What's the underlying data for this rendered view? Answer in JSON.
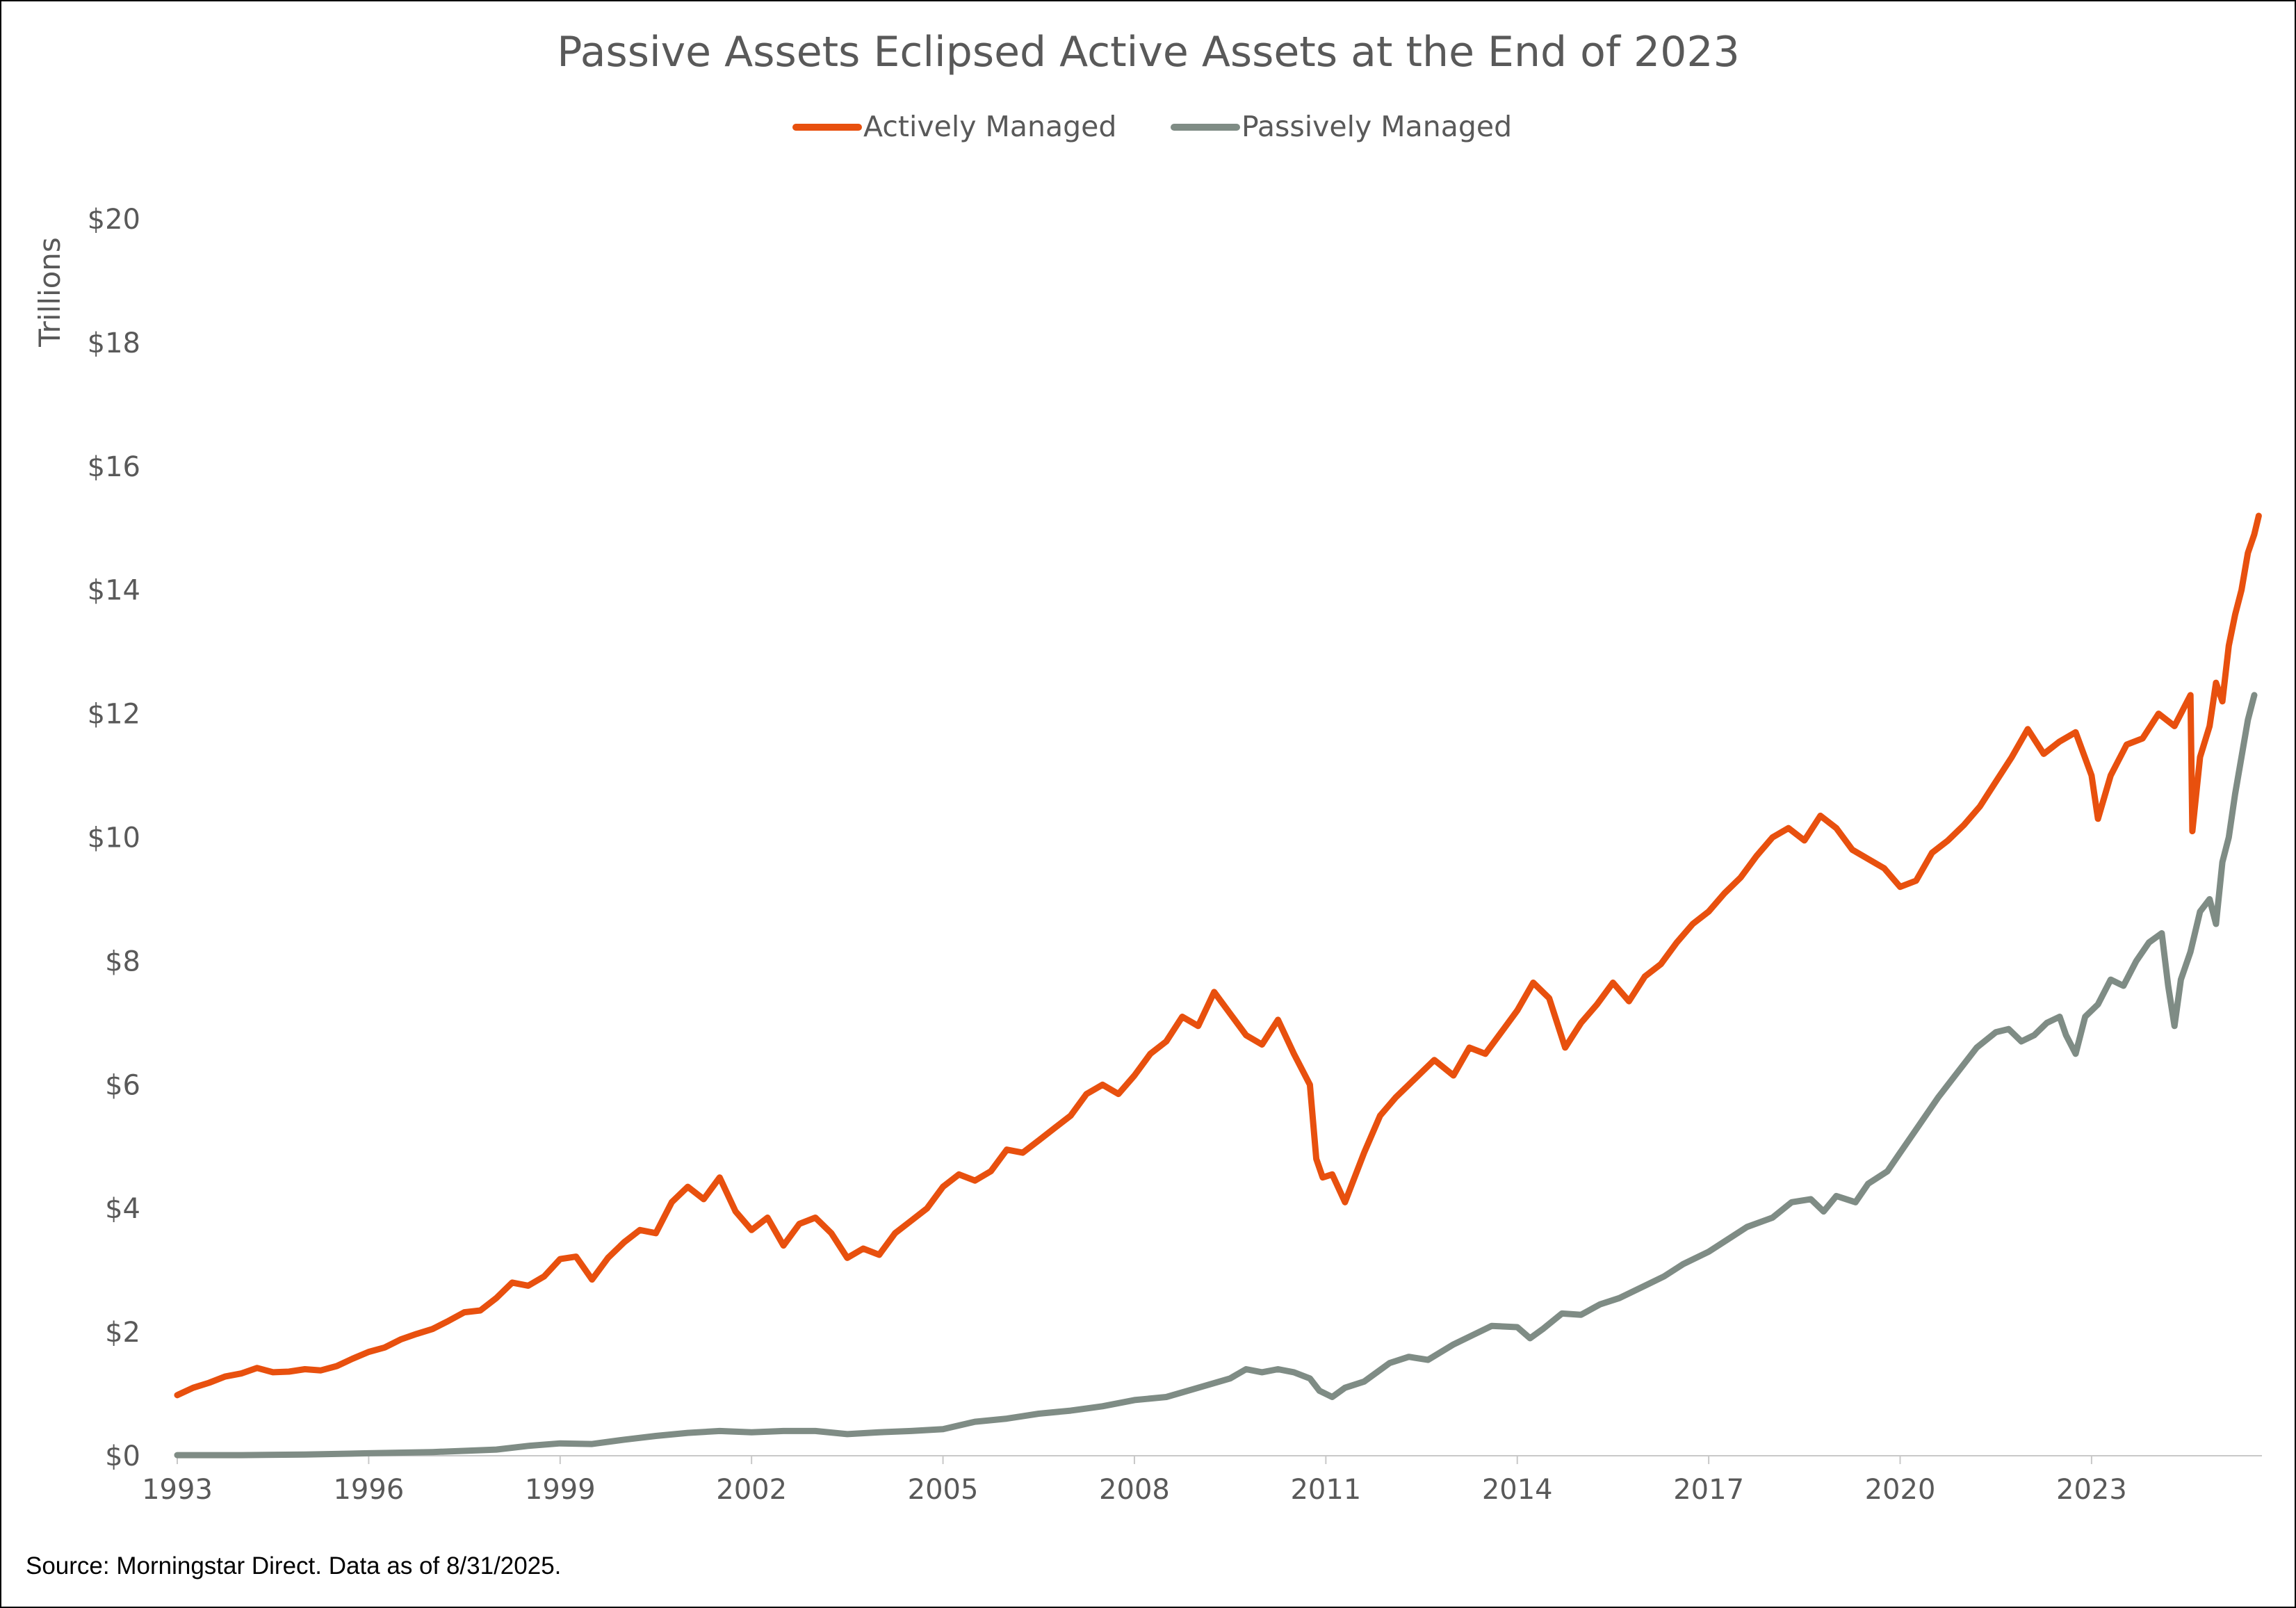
{
  "chart_data": {
    "type": "line",
    "title": "Passive Assets Eclipsed Active Assets at the End of 2023",
    "ylabel": "Trillions",
    "xlabel": "",
    "x_ticks": [
      "1993",
      "1996",
      "1999",
      "2002",
      "2005",
      "2008",
      "2011",
      "2014",
      "2017",
      "2020",
      "2023"
    ],
    "x_tick_values": [
      1993,
      1996,
      1999,
      2002,
      2005,
      2008,
      2011,
      2014,
      2017,
      2020,
      2023
    ],
    "y_ticks": [
      "$0",
      "$2",
      "$4",
      "$6",
      "$8",
      "$10",
      "$12",
      "$14",
      "$16",
      "$18",
      "$20"
    ],
    "y_tick_values": [
      0,
      2,
      4,
      6,
      8,
      10,
      12,
      14,
      16,
      18,
      20
    ],
    "xlim": [
      1993,
      2025.67
    ],
    "ylim": [
      0,
      20
    ],
    "grid": false,
    "legend_position": "top-center",
    "source": "Source: Morningstar Direct. Data as of 8/31/2025.",
    "series": [
      {
        "name": "Actively Managed",
        "color": "#E8500E",
        "points": [
          [
            1993.0,
            0.98
          ],
          [
            1993.25,
            1.1
          ],
          [
            1993.5,
            1.18
          ],
          [
            1993.75,
            1.28
          ],
          [
            1994.0,
            1.33
          ],
          [
            1994.25,
            1.42
          ],
          [
            1994.5,
            1.35
          ],
          [
            1994.75,
            1.36
          ],
          [
            1995.0,
            1.4
          ],
          [
            1995.25,
            1.38
          ],
          [
            1995.5,
            1.45
          ],
          [
            1995.75,
            1.57
          ],
          [
            1996.0,
            1.68
          ],
          [
            1996.25,
            1.75
          ],
          [
            1996.5,
            1.88
          ],
          [
            1996.75,
            1.97
          ],
          [
            1997.0,
            2.05
          ],
          [
            1997.25,
            2.18
          ],
          [
            1997.5,
            2.32
          ],
          [
            1997.75,
            2.35
          ],
          [
            1998.0,
            2.55
          ],
          [
            1998.25,
            2.8
          ],
          [
            1998.5,
            2.75
          ],
          [
            1998.75,
            2.9
          ],
          [
            1999.0,
            3.18
          ],
          [
            1999.25,
            3.22
          ],
          [
            1999.5,
            2.85
          ],
          [
            1999.75,
            3.2
          ],
          [
            2000.0,
            3.45
          ],
          [
            2000.25,
            3.65
          ],
          [
            2000.5,
            3.6
          ],
          [
            2000.75,
            4.1
          ],
          [
            2001.0,
            4.35
          ],
          [
            2001.25,
            4.15
          ],
          [
            2001.5,
            4.5
          ],
          [
            2001.75,
            3.95
          ],
          [
            2002.0,
            3.65
          ],
          [
            2002.25,
            3.85
          ],
          [
            2002.5,
            3.4
          ],
          [
            2002.75,
            3.75
          ],
          [
            2003.0,
            3.85
          ],
          [
            2003.25,
            3.6
          ],
          [
            2003.5,
            3.2
          ],
          [
            2003.75,
            3.35
          ],
          [
            2004.0,
            3.25
          ],
          [
            2004.25,
            3.6
          ],
          [
            2004.5,
            3.8
          ],
          [
            2004.75,
            4.0
          ],
          [
            2005.0,
            4.35
          ],
          [
            2005.25,
            4.55
          ],
          [
            2005.5,
            4.45
          ],
          [
            2005.75,
            4.6
          ],
          [
            2006.0,
            4.95
          ],
          [
            2006.25,
            4.9
          ],
          [
            2006.5,
            5.1
          ],
          [
            2006.75,
            5.3
          ],
          [
            2007.0,
            5.5
          ],
          [
            2007.25,
            5.85
          ],
          [
            2007.5,
            6.0
          ],
          [
            2007.75,
            5.85
          ],
          [
            2008.0,
            6.15
          ],
          [
            2008.25,
            6.5
          ],
          [
            2008.5,
            6.7
          ],
          [
            2008.75,
            7.1
          ],
          [
            2009.0,
            6.95
          ],
          [
            2009.25,
            7.5
          ],
          [
            2009.5,
            7.15
          ],
          [
            2009.75,
            6.8
          ],
          [
            2010.0,
            6.65
          ],
          [
            2010.25,
            7.05
          ],
          [
            2010.5,
            6.5
          ],
          [
            2010.75,
            6.0
          ],
          [
            2010.85,
            4.8
          ],
          [
            2010.95,
            4.5
          ],
          [
            2011.1,
            4.55
          ],
          [
            2011.3,
            4.1
          ],
          [
            2011.6,
            4.9
          ],
          [
            2011.85,
            5.5
          ],
          [
            2012.1,
            5.8
          ],
          [
            2012.4,
            6.1
          ],
          [
            2012.7,
            6.4
          ],
          [
            2013.0,
            6.15
          ],
          [
            2013.25,
            6.6
          ],
          [
            2013.5,
            6.5
          ],
          [
            2013.75,
            6.85
          ],
          [
            2014.0,
            7.2
          ],
          [
            2014.25,
            7.65
          ],
          [
            2014.5,
            7.4
          ],
          [
            2014.75,
            6.6
          ],
          [
            2015.0,
            7.0
          ],
          [
            2015.25,
            7.3
          ],
          [
            2015.5,
            7.65
          ],
          [
            2015.75,
            7.35
          ],
          [
            2016.0,
            7.75
          ],
          [
            2016.25,
            7.95
          ],
          [
            2016.5,
            8.3
          ],
          [
            2016.75,
            8.6
          ],
          [
            2017.0,
            8.8
          ],
          [
            2017.25,
            9.1
          ],
          [
            2017.5,
            9.35
          ],
          [
            2017.75,
            9.7
          ],
          [
            2018.0,
            10.0
          ],
          [
            2018.25,
            10.15
          ],
          [
            2018.5,
            9.95
          ],
          [
            2018.75,
            10.35
          ],
          [
            2019.0,
            10.15
          ],
          [
            2019.25,
            9.8
          ],
          [
            2019.5,
            9.65
          ],
          [
            2019.75,
            9.5
          ],
          [
            2020.0,
            9.2
          ],
          [
            2020.25,
            9.3
          ],
          [
            2020.5,
            9.75
          ],
          [
            2020.75,
            9.95
          ],
          [
            2021.0,
            10.2
          ],
          [
            2021.25,
            10.5
          ],
          [
            2021.5,
            10.9
          ],
          [
            2021.75,
            11.3
          ],
          [
            2022.0,
            11.75
          ],
          [
            2022.25,
            11.35
          ],
          [
            2022.5,
            11.55
          ],
          [
            2022.75,
            11.7
          ],
          [
            2023.0,
            11.0
          ],
          [
            2023.1,
            10.3
          ],
          [
            2023.3,
            11.0
          ],
          [
            2023.55,
            11.5
          ],
          [
            2023.8,
            11.6
          ],
          [
            2024.05,
            12.0
          ],
          [
            2024.3,
            11.8
          ],
          [
            2024.5,
            12.2
          ],
          [
            2024.55,
            12.3
          ],
          [
            2024.58,
            10.1
          ],
          [
            2024.7,
            11.3
          ],
          [
            2024.85,
            11.8
          ],
          [
            2024.95,
            12.5
          ],
          [
            2025.05,
            12.2
          ],
          [
            2025.15,
            13.1
          ],
          [
            2025.25,
            13.6
          ],
          [
            2025.35,
            14.0
          ],
          [
            2025.45,
            14.6
          ],
          [
            2025.55,
            14.9
          ],
          [
            2025.62,
            15.2
          ]
        ]
      },
      {
        "name": "Passively Managed",
        "color": "#7F8C85",
        "points": [
          [
            1993.0,
            0.01
          ],
          [
            1994.0,
            0.01
          ],
          [
            1995.0,
            0.02
          ],
          [
            1996.0,
            0.04
          ],
          [
            1997.0,
            0.06
          ],
          [
            1998.0,
            0.1
          ],
          [
            1998.5,
            0.16
          ],
          [
            1999.0,
            0.2
          ],
          [
            1999.5,
            0.19
          ],
          [
            2000.0,
            0.26
          ],
          [
            2000.5,
            0.32
          ],
          [
            2001.0,
            0.37
          ],
          [
            2001.5,
            0.4
          ],
          [
            2002.0,
            0.38
          ],
          [
            2002.5,
            0.4
          ],
          [
            2003.0,
            0.4
          ],
          [
            2003.5,
            0.35
          ],
          [
            2004.0,
            0.38
          ],
          [
            2004.5,
            0.4
          ],
          [
            2005.0,
            0.43
          ],
          [
            2005.5,
            0.55
          ],
          [
            2006.0,
            0.6
          ],
          [
            2006.5,
            0.68
          ],
          [
            2007.0,
            0.73
          ],
          [
            2007.5,
            0.8
          ],
          [
            2008.0,
            0.9
          ],
          [
            2008.5,
            0.95
          ],
          [
            2009.0,
            1.1
          ],
          [
            2009.5,
            1.25
          ],
          [
            2009.75,
            1.4
          ],
          [
            2010.0,
            1.35
          ],
          [
            2010.25,
            1.4
          ],
          [
            2010.5,
            1.35
          ],
          [
            2010.75,
            1.25
          ],
          [
            2010.9,
            1.05
          ],
          [
            2011.1,
            0.95
          ],
          [
            2011.3,
            1.1
          ],
          [
            2011.6,
            1.2
          ],
          [
            2012.0,
            1.5
          ],
          [
            2012.3,
            1.6
          ],
          [
            2012.6,
            1.55
          ],
          [
            2013.0,
            1.8
          ],
          [
            2013.3,
            1.95
          ],
          [
            2013.6,
            2.1
          ],
          [
            2014.0,
            2.08
          ],
          [
            2014.2,
            1.9
          ],
          [
            2014.4,
            2.05
          ],
          [
            2014.7,
            2.3
          ],
          [
            2015.0,
            2.28
          ],
          [
            2015.3,
            2.45
          ],
          [
            2015.6,
            2.55
          ],
          [
            2016.0,
            2.75
          ],
          [
            2016.3,
            2.9
          ],
          [
            2016.6,
            3.1
          ],
          [
            2017.0,
            3.3
          ],
          [
            2017.3,
            3.5
          ],
          [
            2017.6,
            3.7
          ],
          [
            2018.0,
            3.85
          ],
          [
            2018.3,
            4.1
          ],
          [
            2018.6,
            4.15
          ],
          [
            2018.8,
            3.95
          ],
          [
            2019.0,
            4.2
          ],
          [
            2019.3,
            4.1
          ],
          [
            2019.5,
            4.4
          ],
          [
            2019.8,
            4.6
          ],
          [
            2020.0,
            4.9
          ],
          [
            2020.3,
            5.35
          ],
          [
            2020.6,
            5.8
          ],
          [
            2020.9,
            6.2
          ],
          [
            2021.2,
            6.6
          ],
          [
            2021.5,
            6.85
          ],
          [
            2021.7,
            6.9
          ],
          [
            2021.9,
            6.7
          ],
          [
            2022.1,
            6.8
          ],
          [
            2022.3,
            7.0
          ],
          [
            2022.5,
            7.1
          ],
          [
            2022.6,
            6.8
          ],
          [
            2022.75,
            6.5
          ],
          [
            2022.9,
            7.1
          ],
          [
            2023.1,
            7.3
          ],
          [
            2023.3,
            7.7
          ],
          [
            2023.5,
            7.6
          ],
          [
            2023.7,
            8.0
          ],
          [
            2023.9,
            8.3
          ],
          [
            2024.1,
            8.45
          ],
          [
            2024.2,
            7.6
          ],
          [
            2024.3,
            6.95
          ],
          [
            2024.4,
            7.7
          ],
          [
            2024.55,
            8.15
          ],
          [
            2024.7,
            8.8
          ],
          [
            2024.85,
            9.0
          ],
          [
            2024.95,
            8.6
          ],
          [
            2025.05,
            9.6
          ],
          [
            2025.15,
            10.0
          ],
          [
            2025.25,
            10.7
          ],
          [
            2025.35,
            11.3
          ],
          [
            2025.45,
            11.9
          ],
          [
            2025.55,
            12.3
          ]
        ]
      }
    ]
  }
}
